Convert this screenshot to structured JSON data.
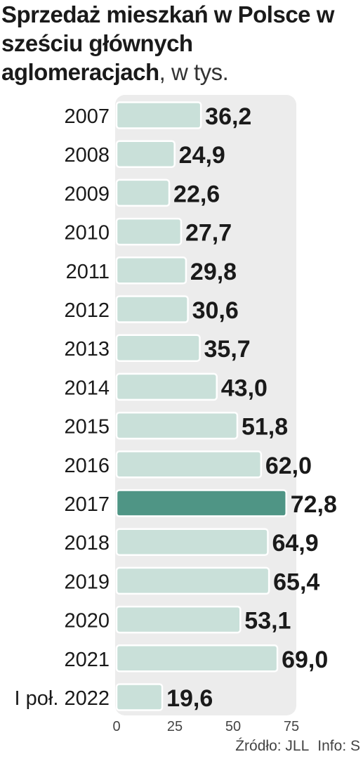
{
  "title": {
    "bold": "Sprzedaż mieszkań w Polsce w sześciu głównych aglomeracjach",
    "unit": ", w tys."
  },
  "source": {
    "origin": "Źródło: JLL",
    "info": "Info: S"
  },
  "colors": {
    "bar": "#c9e0d9",
    "bar_stroke": "#ffffff",
    "highlight": "#4f9585",
    "plot_bg": "#ececec",
    "text": "#1a1a1a"
  },
  "chart_data": {
    "type": "bar",
    "orientation": "horizontal",
    "categories": [
      "2007",
      "2008",
      "2009",
      "2010",
      "2011",
      "2012",
      "2013",
      "2014",
      "2015",
      "2016",
      "2017",
      "2018",
      "2019",
      "2020",
      "2021",
      "I poł. 2022"
    ],
    "values": [
      36.2,
      24.9,
      22.6,
      27.7,
      29.8,
      30.6,
      35.7,
      43.0,
      51.8,
      62.0,
      72.8,
      64.9,
      65.4,
      53.1,
      69.0,
      19.6
    ],
    "value_labels": [
      "36,2",
      "24,9",
      "22,6",
      "27,7",
      "29,8",
      "30,6",
      "35,7",
      "43,0",
      "51,8",
      "62,0",
      "72,8",
      "64,9",
      "65,4",
      "53,1",
      "69,0",
      "19,6"
    ],
    "highlight_category": "2017",
    "xlim": [
      0,
      75
    ],
    "xticks": [
      0,
      25,
      50,
      75
    ],
    "grid": false,
    "legend": "none"
  }
}
